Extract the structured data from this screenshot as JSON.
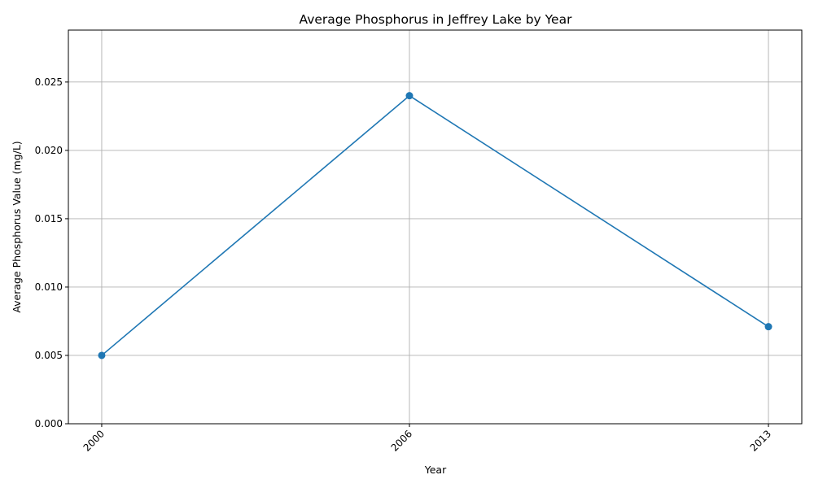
{
  "chart_data": {
    "type": "line",
    "title": "Average Phosphorus in Jeffrey Lake by Year",
    "xlabel": "Year",
    "ylabel": "Average Phosphorus Value (mg/L)",
    "x": [
      "2000",
      "2006",
      "2013"
    ],
    "x_numeric": [
      2000,
      2006,
      2013
    ],
    "xlim": [
      1999.35,
      2013.65
    ],
    "ylim": [
      0,
      0.0288
    ],
    "yticks": [
      "0.000",
      "0.005",
      "0.010",
      "0.015",
      "0.020",
      "0.025"
    ],
    "ytick_values": [
      0,
      0.005,
      0.01,
      0.015,
      0.02,
      0.025
    ],
    "grid": true,
    "marker": "circle",
    "series": [
      {
        "values": [
          0.005,
          0.024,
          0.0071
        ],
        "color": "#1f77b4"
      }
    ]
  }
}
